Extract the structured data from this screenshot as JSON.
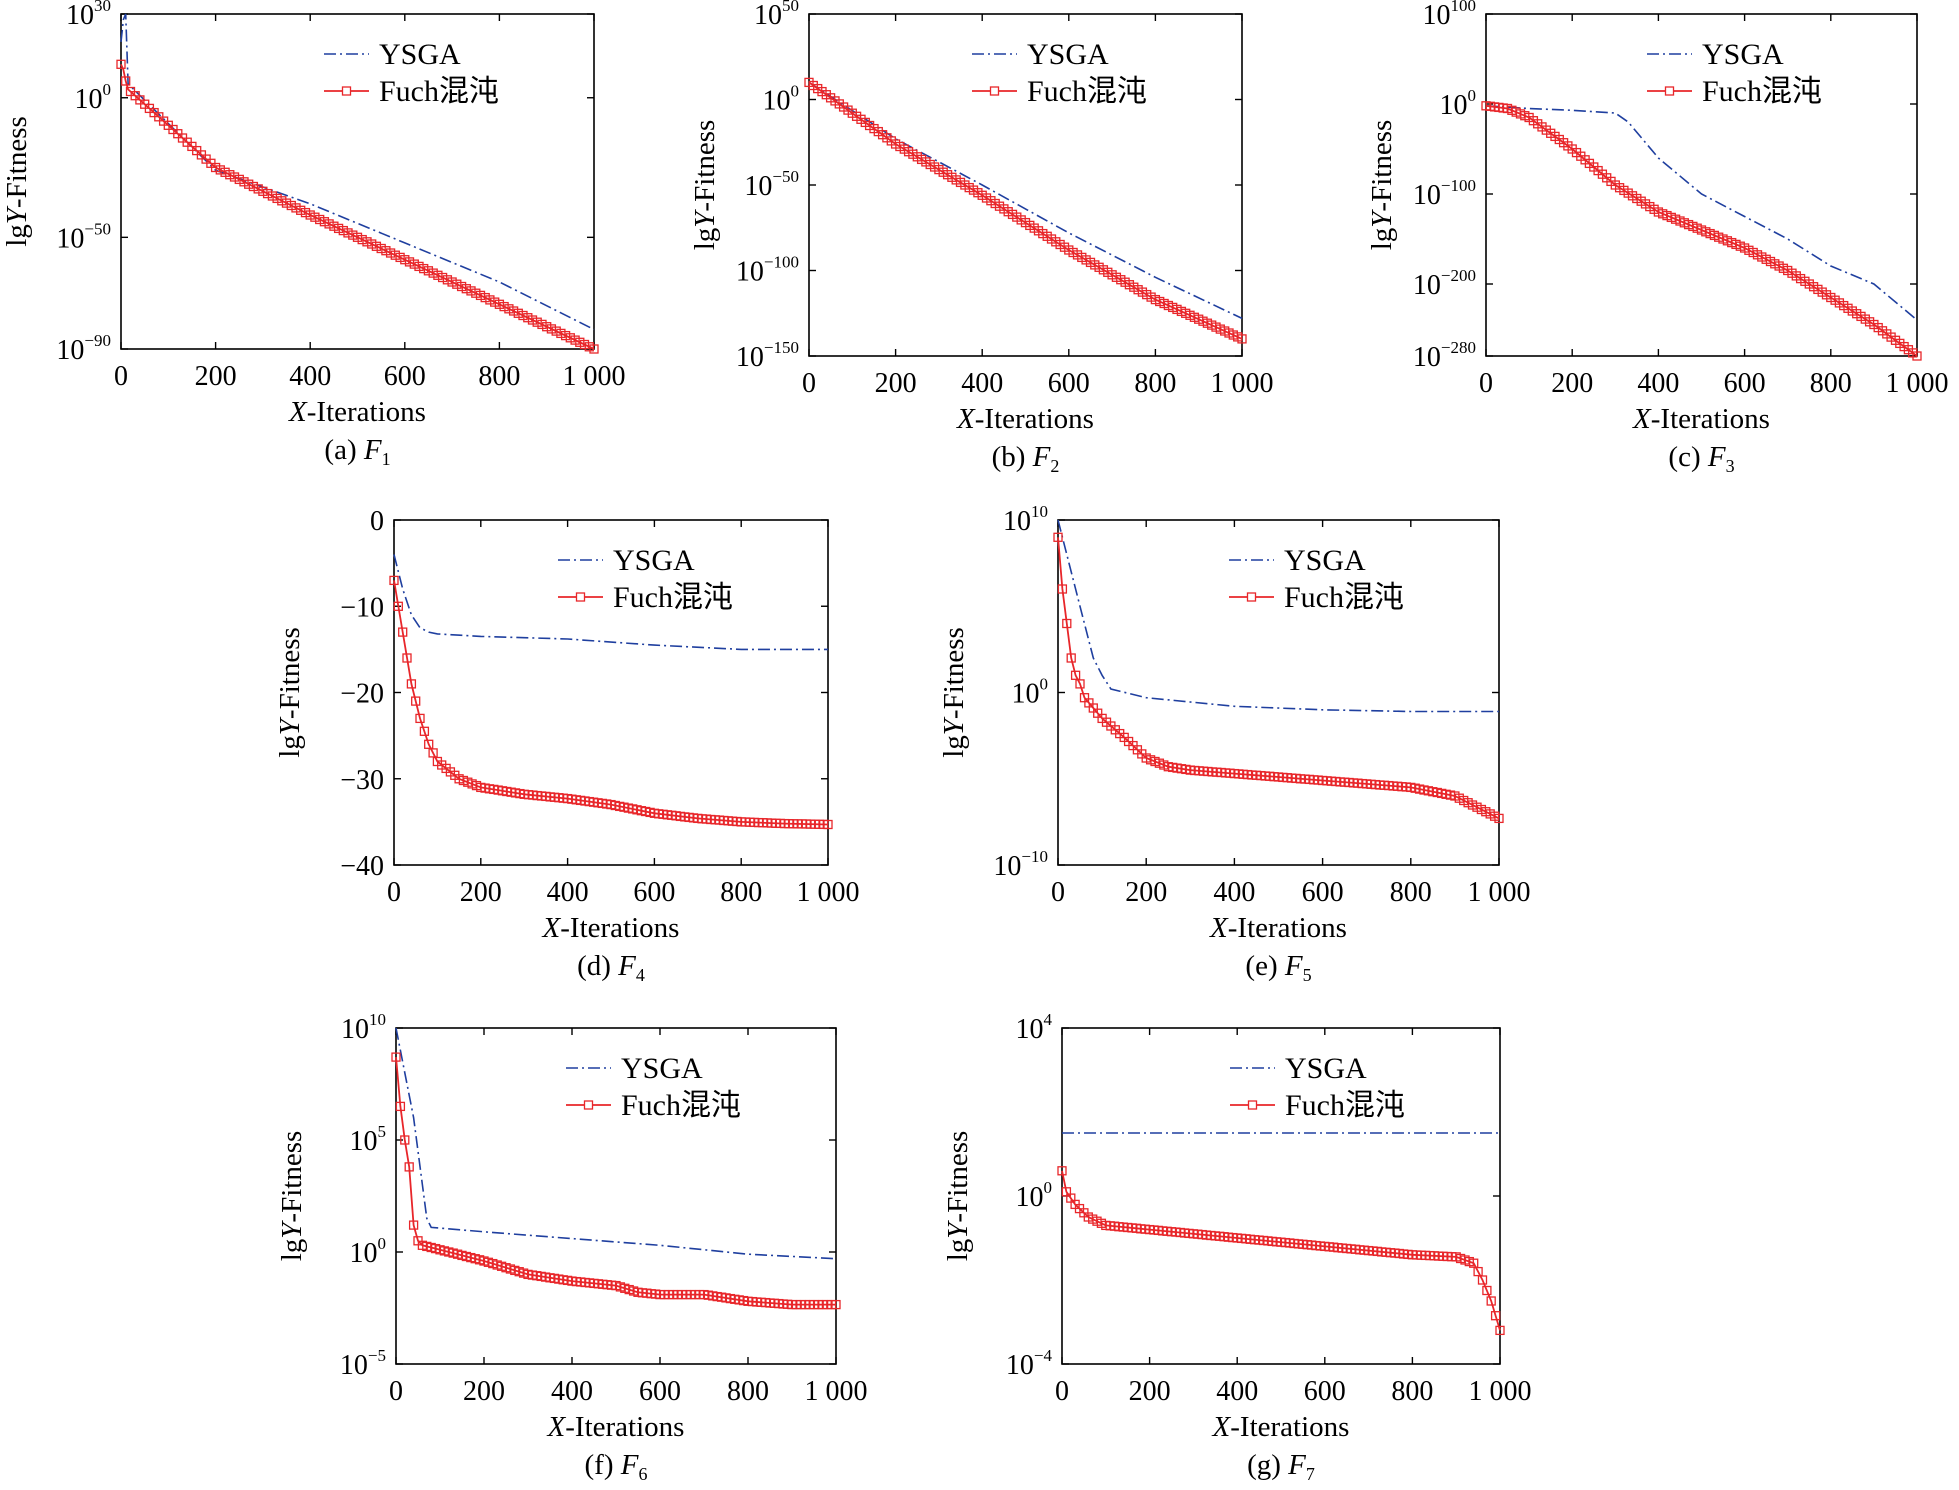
{
  "figure": {
    "series_colors": {
      "YSGA": "#1f3f9f",
      "Fuch混沌": "#e8262a"
    }
  },
  "chart_data": [
    {
      "id": "a",
      "type": "line",
      "scale": "log",
      "caption": {
        "prefix": "(a) ",
        "func": "F",
        "sub": "1"
      },
      "xlabel": {
        "var": "X",
        "rest": "-Iterations"
      },
      "ylabel": {
        "pre": "lg",
        "var": "Y",
        "rest": "-Fitness"
      },
      "xlim": [
        0,
        1000
      ],
      "ylim": [
        -90,
        30
      ],
      "xticks": [
        0,
        200,
        400,
        600,
        800,
        1000
      ],
      "xtick_labels": [
        "0",
        "200",
        "400",
        "600",
        "800",
        "1 000"
      ],
      "yticks": [
        -90,
        -50,
        0,
        30
      ],
      "ytick_labels": [
        {
          "base": "10",
          "exp": "−90"
        },
        {
          "base": "10",
          "exp": "−50"
        },
        {
          "base": "10",
          "exp": "0"
        },
        {
          "base": "10",
          "exp": "30"
        }
      ],
      "legend": {
        "position": "top-right",
        "entries": [
          "YSGA",
          "Fuch混沌"
        ]
      },
      "series": [
        {
          "name": "YSGA",
          "style": "dashdot",
          "color": "#1f3f9f",
          "x": [
            0,
            5,
            10,
            15,
            200,
            400,
            600,
            800,
            1000
          ],
          "y": [
            20,
            28,
            30,
            5,
            -26,
            -38,
            -52,
            -66,
            -83
          ]
        },
        {
          "name": "Fuch混沌",
          "style": "solid-square",
          "color": "#e8262a",
          "x": [
            0,
            5,
            10,
            15,
            200,
            400,
            600,
            800,
            1000
          ],
          "y": [
            12,
            10,
            6,
            3,
            -25,
            -42,
            -58,
            -74,
            -90
          ]
        }
      ]
    },
    {
      "id": "b",
      "type": "line",
      "scale": "log",
      "caption": {
        "prefix": "(b) ",
        "func": "F",
        "sub": "2"
      },
      "xlabel": {
        "var": "X",
        "rest": "-Iterations"
      },
      "ylabel": {
        "pre": "lg",
        "var": "Y",
        "rest": "-Fitness"
      },
      "xlim": [
        0,
        1000
      ],
      "ylim": [
        -150,
        50
      ],
      "xticks": [
        0,
        200,
        400,
        600,
        800,
        1000
      ],
      "xtick_labels": [
        "0",
        "200",
        "400",
        "600",
        "800",
        "1 000"
      ],
      "yticks": [
        -150,
        -100,
        -50,
        0,
        50
      ],
      "ytick_labels": [
        {
          "base": "10",
          "exp": "−150"
        },
        {
          "base": "10",
          "exp": "−100"
        },
        {
          "base": "10",
          "exp": "−50"
        },
        {
          "base": "10",
          "exp": "0"
        },
        {
          "base": "10",
          "exp": "50"
        }
      ],
      "legend": {
        "position": "top-right",
        "entries": [
          "YSGA",
          "Fuch混沌"
        ]
      },
      "series": [
        {
          "name": "YSGA",
          "style": "dashdot",
          "color": "#1f3f9f",
          "x": [
            0,
            200,
            400,
            600,
            800,
            1000
          ],
          "y": [
            10,
            -23,
            -50,
            -78,
            -104,
            -128
          ]
        },
        {
          "name": "Fuch混沌",
          "style": "solid-square",
          "color": "#e8262a",
          "x": [
            0,
            200,
            400,
            600,
            800,
            1000
          ],
          "y": [
            10,
            -26,
            -56,
            -88,
            -117,
            -140
          ]
        }
      ]
    },
    {
      "id": "c",
      "type": "line",
      "scale": "log",
      "caption": {
        "prefix": "(c) ",
        "func": "F",
        "sub": "3"
      },
      "xlabel": {
        "var": "X",
        "rest": "-Iterations"
      },
      "ylabel": {
        "pre": "lg",
        "var": "Y",
        "rest": "-Fitness"
      },
      "xlim": [
        0,
        1000
      ],
      "ylim": [
        -280,
        100
      ],
      "xticks": [
        0,
        200,
        400,
        600,
        800,
        1000
      ],
      "xtick_labels": [
        "0",
        "200",
        "400",
        "600",
        "800",
        "1 000"
      ],
      "yticks": [
        -280,
        -200,
        -100,
        0,
        100
      ],
      "ytick_labels": [
        {
          "base": "10",
          "exp": "−280"
        },
        {
          "base": "10",
          "exp": "−200"
        },
        {
          "base": "10",
          "exp": "−100"
        },
        {
          "base": "10",
          "exp": "0"
        },
        {
          "base": "10",
          "exp": "100"
        }
      ],
      "legend": {
        "position": "top-right",
        "entries": [
          "YSGA",
          "Fuch混沌"
        ]
      },
      "series": [
        {
          "name": "YSGA",
          "style": "dashdot",
          "color": "#1f3f9f",
          "x": [
            0,
            100,
            200,
            300,
            330,
            400,
            500,
            600,
            700,
            800,
            900,
            1000
          ],
          "y": [
            -2,
            -5,
            -7,
            -10,
            -20,
            -60,
            -100,
            -125,
            -150,
            -180,
            -200,
            -240
          ]
        },
        {
          "name": "Fuch混沌",
          "style": "solid-square",
          "color": "#e8262a",
          "x": [
            0,
            50,
            100,
            200,
            300,
            400,
            500,
            600,
            700,
            800,
            900,
            1000
          ],
          "y": [
            -2,
            -5,
            -15,
            -50,
            -90,
            -120,
            -140,
            -160,
            -185,
            -215,
            -245,
            -280
          ]
        }
      ]
    },
    {
      "id": "d",
      "type": "line",
      "scale": "linear",
      "caption": {
        "prefix": "(d) ",
        "func": "F",
        "sub": "4"
      },
      "xlabel": {
        "var": "X",
        "rest": "-Iterations"
      },
      "ylabel": {
        "pre": "lg",
        "var": "Y",
        "rest": "-Fitness"
      },
      "xlim": [
        0,
        1000
      ],
      "ylim": [
        -40,
        0
      ],
      "xticks": [
        0,
        200,
        400,
        600,
        800,
        1000
      ],
      "xtick_labels": [
        "0",
        "200",
        "400",
        "600",
        "800",
        "1 000"
      ],
      "yticks": [
        -40,
        -30,
        -20,
        -10,
        0
      ],
      "ytick_labels": [
        "−40",
        "−30",
        "−20",
        "−10",
        "0"
      ],
      "legend": {
        "position": "top-right",
        "entries": [
          "YSGA",
          "Fuch混沌"
        ]
      },
      "series": [
        {
          "name": "YSGA",
          "style": "dashdot",
          "color": "#1f3f9f",
          "x": [
            0,
            20,
            40,
            60,
            80,
            100,
            200,
            400,
            600,
            800,
            1000
          ],
          "y": [
            -4,
            -8,
            -11,
            -12.5,
            -13,
            -13.2,
            -13.5,
            -13.8,
            -14.5,
            -15,
            -15
          ]
        },
        {
          "name": "Fuch混沌",
          "style": "solid-square",
          "color": "#e8262a",
          "x": [
            0,
            20,
            40,
            60,
            80,
            100,
            150,
            200,
            300,
            400,
            500,
            600,
            700,
            800,
            900,
            1000
          ],
          "y": [
            -7,
            -13,
            -19,
            -23,
            -26,
            -28,
            -30,
            -31,
            -31.8,
            -32.3,
            -33,
            -34,
            -34.6,
            -35,
            -35.2,
            -35.3
          ]
        }
      ]
    },
    {
      "id": "e",
      "type": "line",
      "scale": "log",
      "caption": {
        "prefix": "(e) ",
        "func": "F",
        "sub": "5"
      },
      "xlabel": {
        "var": "X",
        "rest": "-Iterations"
      },
      "ylabel": {
        "pre": "lg",
        "var": "Y",
        "rest": "-Fitness"
      },
      "xlim": [
        0,
        1000
      ],
      "ylim": [
        -10,
        10
      ],
      "xticks": [
        0,
        200,
        400,
        600,
        800,
        1000
      ],
      "xtick_labels": [
        "0",
        "200",
        "400",
        "600",
        "800",
        "1 000"
      ],
      "yticks": [
        -10,
        0,
        10
      ],
      "ytick_labels": [
        {
          "base": "10",
          "exp": "−10"
        },
        {
          "base": "10",
          "exp": "0"
        },
        {
          "base": "10",
          "exp": "10"
        }
      ],
      "legend": {
        "position": "top-right",
        "entries": [
          "YSGA",
          "Fuch混沌"
        ]
      },
      "series": [
        {
          "name": "YSGA",
          "style": "dashdot",
          "color": "#1f3f9f",
          "x": [
            0,
            20,
            50,
            80,
            100,
            120,
            200,
            400,
            600,
            800,
            1000
          ],
          "y": [
            10,
            8,
            5,
            2,
            1,
            0.2,
            -0.3,
            -0.8,
            -1,
            -1.1,
            -1.1
          ]
        },
        {
          "name": "Fuch混沌",
          "style": "solid-square",
          "color": "#e8262a",
          "x": [
            0,
            10,
            20,
            30,
            40,
            50,
            60,
            80,
            100,
            150,
            200,
            250,
            300,
            400,
            500,
            600,
            700,
            800,
            900,
            1000
          ],
          "y": [
            9,
            6,
            4,
            2,
            1,
            0.5,
            -0.3,
            -0.9,
            -1.5,
            -2.6,
            -3.8,
            -4.3,
            -4.5,
            -4.7,
            -4.9,
            -5.1,
            -5.3,
            -5.5,
            -6,
            -7.3
          ]
        }
      ]
    },
    {
      "id": "f",
      "type": "line",
      "scale": "log",
      "caption": {
        "prefix": "(f) ",
        "func": "F",
        "sub": "6"
      },
      "xlabel": {
        "var": "X",
        "rest": "-Iterations"
      },
      "ylabel": {
        "pre": "lg",
        "var": "Y",
        "rest": "-Fitness"
      },
      "xlim": [
        0,
        1000
      ],
      "ylim": [
        -5,
        10
      ],
      "xticks": [
        0,
        200,
        400,
        600,
        800,
        1000
      ],
      "xtick_labels": [
        "0",
        "200",
        "400",
        "600",
        "800",
        "1 000"
      ],
      "yticks": [
        -5,
        0,
        5,
        10
      ],
      "ytick_labels": [
        {
          "base": "10",
          "exp": "−5"
        },
        {
          "base": "10",
          "exp": "0"
        },
        {
          "base": "10",
          "exp": "5"
        },
        {
          "base": "10",
          "exp": "10"
        }
      ],
      "legend": {
        "position": "top-right",
        "entries": [
          "YSGA",
          "Fuch混沌"
        ]
      },
      "series": [
        {
          "name": "YSGA",
          "style": "dashdot",
          "color": "#1f3f9f",
          "x": [
            0,
            20,
            40,
            60,
            70,
            80,
            200,
            400,
            600,
            800,
            1000
          ],
          "y": [
            10,
            8,
            6,
            3,
            1.5,
            1.1,
            0.9,
            0.6,
            0.3,
            -0.1,
            -0.3
          ]
        },
        {
          "name": "Fuch混沌",
          "style": "solid-square",
          "color": "#e8262a",
          "x": [
            0,
            10,
            20,
            30,
            40,
            50,
            60,
            100,
            200,
            300,
            400,
            500,
            550,
            600,
            700,
            800,
            900,
            1000
          ],
          "y": [
            8.7,
            6.5,
            5,
            3.8,
            1.2,
            0.5,
            0.3,
            0.1,
            -0.4,
            -1,
            -1.3,
            -1.5,
            -1.8,
            -1.9,
            -1.9,
            -2.2,
            -2.35,
            -2.35
          ]
        }
      ]
    },
    {
      "id": "g",
      "type": "line",
      "scale": "log",
      "caption": {
        "prefix": "(g) ",
        "func": "F",
        "sub": "7"
      },
      "xlabel": {
        "var": "X",
        "rest": "-Iterations"
      },
      "ylabel": {
        "pre": "lg",
        "var": "Y",
        "rest": "-Fitness"
      },
      "xlim": [
        0,
        1000
      ],
      "ylim": [
        -4,
        4
      ],
      "xticks": [
        0,
        200,
        400,
        600,
        800,
        1000
      ],
      "xtick_labels": [
        "0",
        "200",
        "400",
        "600",
        "800",
        "1 000"
      ],
      "yticks": [
        -4,
        0,
        4
      ],
      "ytick_labels": [
        {
          "base": "10",
          "exp": "−4"
        },
        {
          "base": "10",
          "exp": "0"
        },
        {
          "base": "10",
          "exp": "4"
        }
      ],
      "legend": {
        "position": "top-right",
        "entries": [
          "YSGA",
          "Fuch混沌"
        ]
      },
      "series": [
        {
          "name": "YSGA",
          "style": "dashdot",
          "color": "#1f3f9f",
          "x": [
            0,
            500,
            1000
          ],
          "y": [
            1.5,
            1.5,
            1.5
          ]
        },
        {
          "name": "Fuch混沌",
          "style": "solid-square",
          "color": "#e8262a",
          "x": [
            0,
            10,
            30,
            60,
            100,
            200,
            400,
            600,
            800,
            900,
            940,
            960,
            980,
            1000
          ],
          "y": [
            0.6,
            0.1,
            -0.2,
            -0.5,
            -0.7,
            -0.8,
            -1,
            -1.2,
            -1.4,
            -1.45,
            -1.6,
            -2,
            -2.5,
            -3.2
          ]
        }
      ]
    }
  ]
}
